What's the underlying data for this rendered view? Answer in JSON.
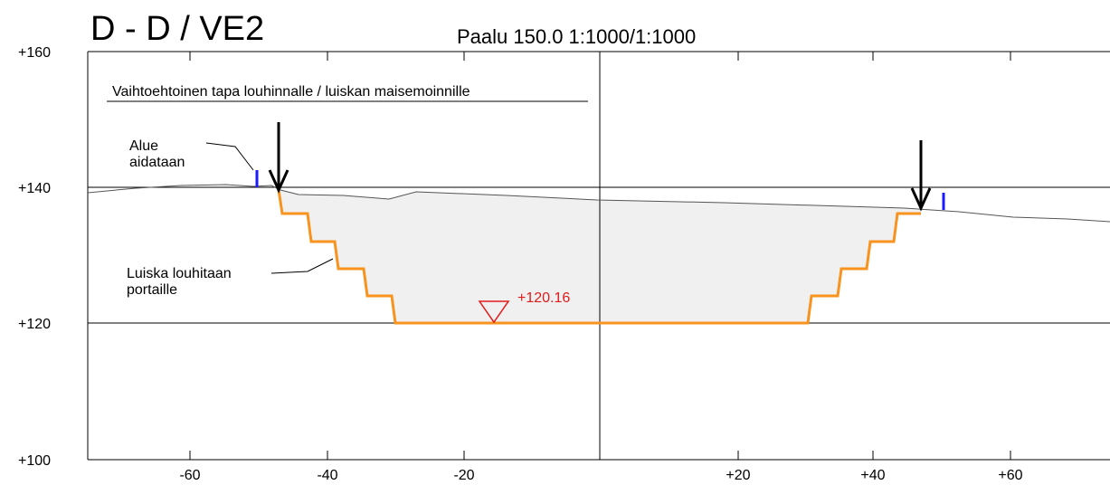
{
  "title": "D - D / VE2",
  "subtitle": "Paalu 150.0  1:1000/1:1000",
  "note": "Vaihtoehtoinen tapa louhinnalle / luiskan maisemoinnille",
  "labels": {
    "fence": [
      "Alue",
      "aidataan"
    ],
    "slope": [
      "Luiska louhitaan",
      "portaille"
    ],
    "level": "+120.16"
  },
  "y_ticks": [
    "+160",
    "+140",
    "+120",
    "+100"
  ],
  "x_ticks": [
    "-60",
    "-40",
    "-20",
    "+20",
    "+40",
    "+60"
  ]
}
